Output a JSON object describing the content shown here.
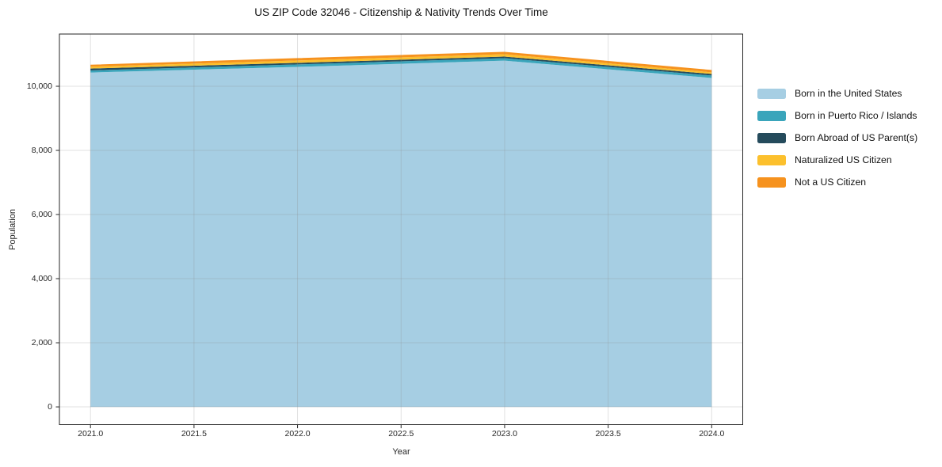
{
  "chart_data": {
    "type": "area",
    "stacked": true,
    "title": "US ZIP Code 32046 - Citizenship & Nativity Trends Over Time",
    "xlabel": "Year",
    "ylabel": "Population",
    "x": [
      2021,
      2022,
      2023,
      2024
    ],
    "series": [
      {
        "name": "Born in the United States",
        "color": "#a6cee3",
        "values": [
          10430,
          10605,
          10800,
          10260
        ]
      },
      {
        "name": "Born in Puerto Rico / Islands",
        "color": "#3aa5bb",
        "values": [
          64,
          75,
          75,
          75
        ]
      },
      {
        "name": "Born Abroad of US Parent(s)",
        "color": "#254b5c",
        "values": [
          58,
          50,
          50,
          50
        ]
      },
      {
        "name": "Naturalized US Citizen",
        "color": "#fcc02d",
        "values": [
          58,
          74,
          74,
          50
        ]
      },
      {
        "name": "Not a US Citizen",
        "color": "#f6921e",
        "values": [
          61,
          75,
          75,
          74
        ]
      }
    ],
    "stack_totals": [
      10671,
      10879,
      11074,
      10509
    ],
    "xlim": [
      2020.85,
      2024.15
    ],
    "ylim": [
      -554,
      11629
    ],
    "x_tick_labels": [
      "2021.0",
      "2021.5",
      "2022.0",
      "2022.5",
      "2023.0",
      "2023.5",
      "2024.0"
    ],
    "x_tick_values": [
      2021,
      2021.5,
      2022,
      2022.5,
      2023,
      2023.5,
      2024
    ],
    "y_tick_labels": [
      "0",
      "2,000",
      "4,000",
      "6,000",
      "8,000",
      "10,000"
    ],
    "y_tick_values": [
      0,
      2000,
      4000,
      6000,
      8000,
      10000
    ],
    "grid": true,
    "legend_position": "right",
    "background": "#ffffff",
    "spine_color": "#262626",
    "grid_color": "#8c8c8c",
    "grid_opacity": 0.27
  }
}
